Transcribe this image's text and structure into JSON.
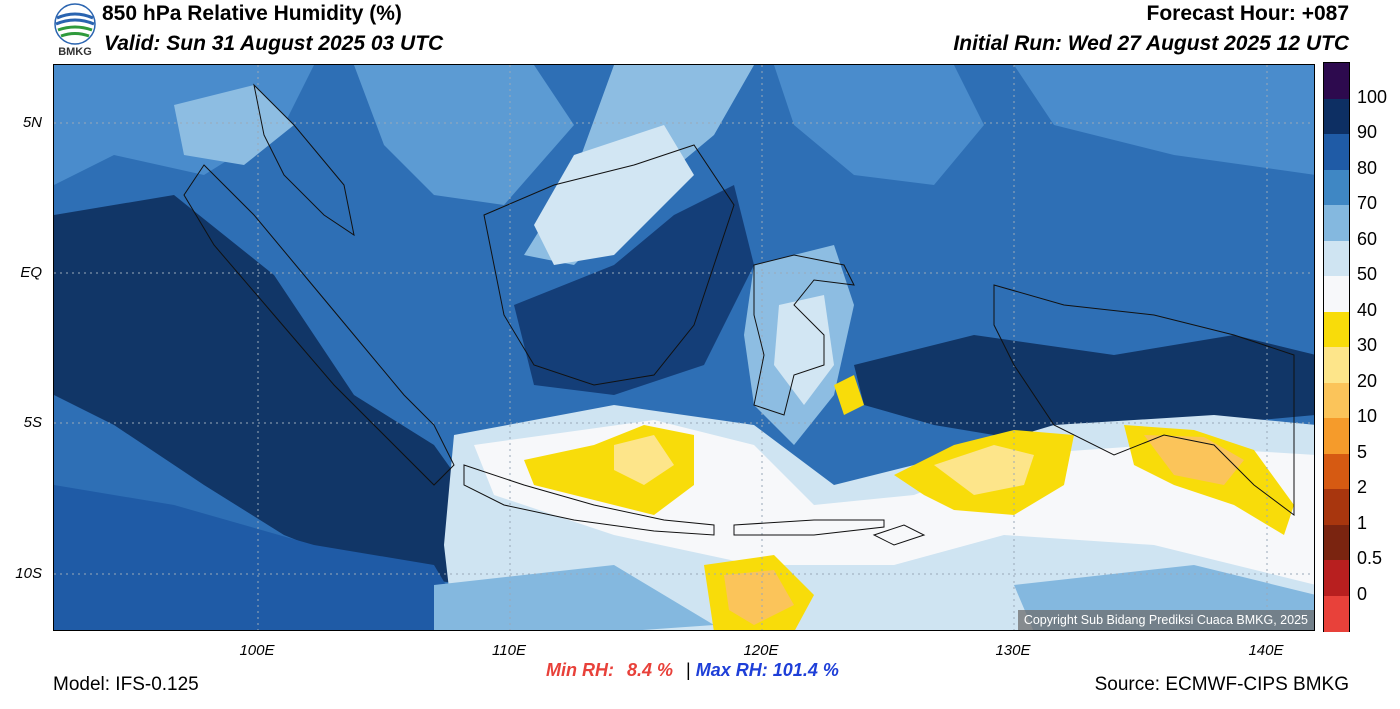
{
  "header": {
    "title": "850 hPa Relative Humidity (%)",
    "valid": "Valid: Sun 31 August 2025 03 UTC",
    "forecast_hour": "Forecast Hour: +087",
    "initial_run": "Initial Run: Wed 27 August 2025 12 UTC",
    "logo_text": "BMKG"
  },
  "map": {
    "lat_labels": [
      "5N",
      "EQ",
      "5S",
      "10S"
    ],
    "lon_labels": [
      "100E",
      "110E",
      "120E",
      "130E",
      "140E"
    ],
    "copyright": "Copyright Sub Bidang Prediksi Cuaca BMKG, 2025"
  },
  "colorbar": {
    "labels": [
      "100",
      "90",
      "80",
      "70",
      "60",
      "50",
      "40",
      "30",
      "20",
      "10",
      "5",
      "2",
      "1",
      "0.5",
      "0"
    ],
    "colors": [
      "#2d0a4e",
      "#0d2f63",
      "#1f5ba6",
      "#3f87c4",
      "#84b8df",
      "#cfe4f2",
      "#f7f8fa",
      "#f8dc0a",
      "#fde58a",
      "#fbc45a",
      "#f59b2b",
      "#d65a12",
      "#a8360e",
      "#7a2410",
      "#b81f1f",
      "#e8413a"
    ]
  },
  "footer": {
    "model": "Model: IFS-0.125",
    "min_rh_label": "Min RH:",
    "min_rh_value": "8.4 %",
    "separator": "|",
    "max_rh_label": "Max RH:",
    "max_rh_value": "101.4 %",
    "source": "Source: ECMWF-CIPS BMKG"
  }
}
